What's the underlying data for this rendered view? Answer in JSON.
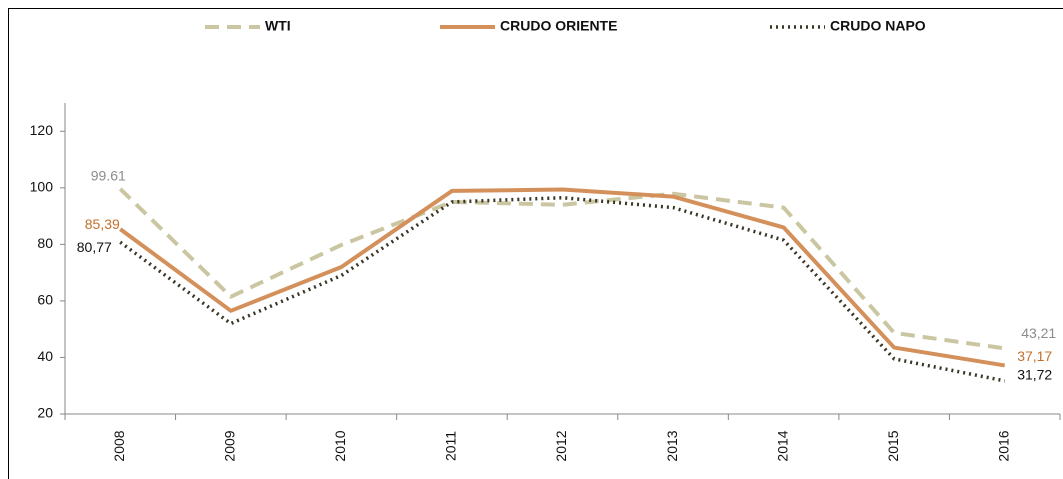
{
  "chart_data": {
    "type": "line",
    "categories": [
      "2008",
      "2009",
      "2010",
      "2011",
      "2012",
      "2013",
      "2014",
      "2015",
      "2016"
    ],
    "series": [
      {
        "name": "WTI",
        "color": "#cbc6a2",
        "style": "dashed",
        "values": [
          99.61,
          61.5,
          79.8,
          95,
          94,
          97.9,
          93,
          48.7,
          43.21
        ],
        "value_labels": [
          "99.61",
          null,
          null,
          null,
          null,
          null,
          null,
          null,
          "43,21"
        ],
        "label_color": "#8c8c8c"
      },
      {
        "name": "CRUDO ORIENTE",
        "color": "#d4905a",
        "style": "solid",
        "values": [
          85.39,
          56.5,
          72,
          98.9,
          99.4,
          96.9,
          86,
          43.5,
          37.17
        ],
        "value_labels": [
          "85,39",
          null,
          null,
          null,
          null,
          null,
          null,
          null,
          "37,17"
        ],
        "label_color": "#c0702a"
      },
      {
        "name": "CRUDO NAPO",
        "color": "#3a3626",
        "style": "dotted",
        "values": [
          80.77,
          52,
          69,
          95,
          96.5,
          93,
          81.5,
          39.5,
          31.72
        ],
        "value_labels": [
          "80,77",
          null,
          null,
          null,
          null,
          null,
          null,
          null,
          "31,72"
        ],
        "label_color": "#111111"
      }
    ],
    "ylim": [
      20,
      130
    ],
    "yticks": [
      20,
      40,
      60,
      80,
      100,
      120
    ],
    "grid": false,
    "legend": "top"
  }
}
